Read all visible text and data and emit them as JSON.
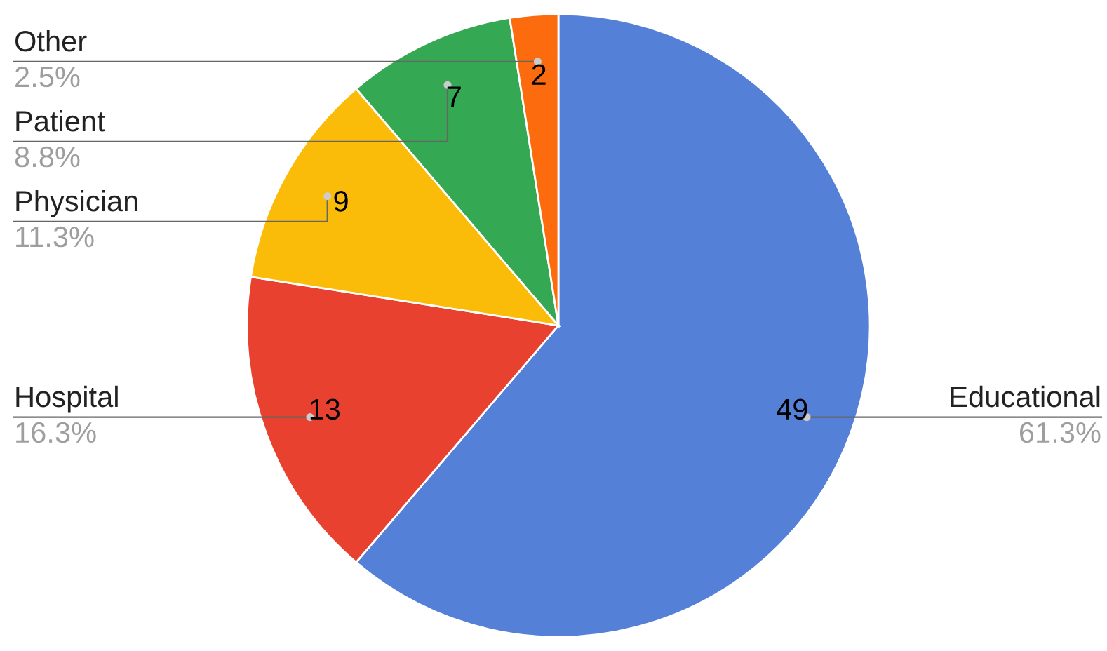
{
  "chart_data": {
    "type": "pie",
    "categories": [
      "Educational",
      "Hospital",
      "Physician",
      "Patient",
      "Other"
    ],
    "values": [
      49,
      13,
      9,
      7,
      2
    ],
    "colors": [
      "#5580d8",
      "#e8412f",
      "#fbbc09",
      "#35a853",
      "#fd6b0f"
    ],
    "value_labels": [
      "49",
      "13",
      "9",
      "7",
      "2"
    ],
    "annotations": [
      {
        "text": "61.3%",
        "x": "Educational"
      },
      {
        "text": "16.3%",
        "x": "Hospital"
      },
      {
        "text": "11.3%",
        "x": "Physician"
      },
      {
        "text": "8.8%",
        "x": "Patient"
      },
      {
        "text": "2.5%",
        "x": "Other"
      }
    ]
  }
}
